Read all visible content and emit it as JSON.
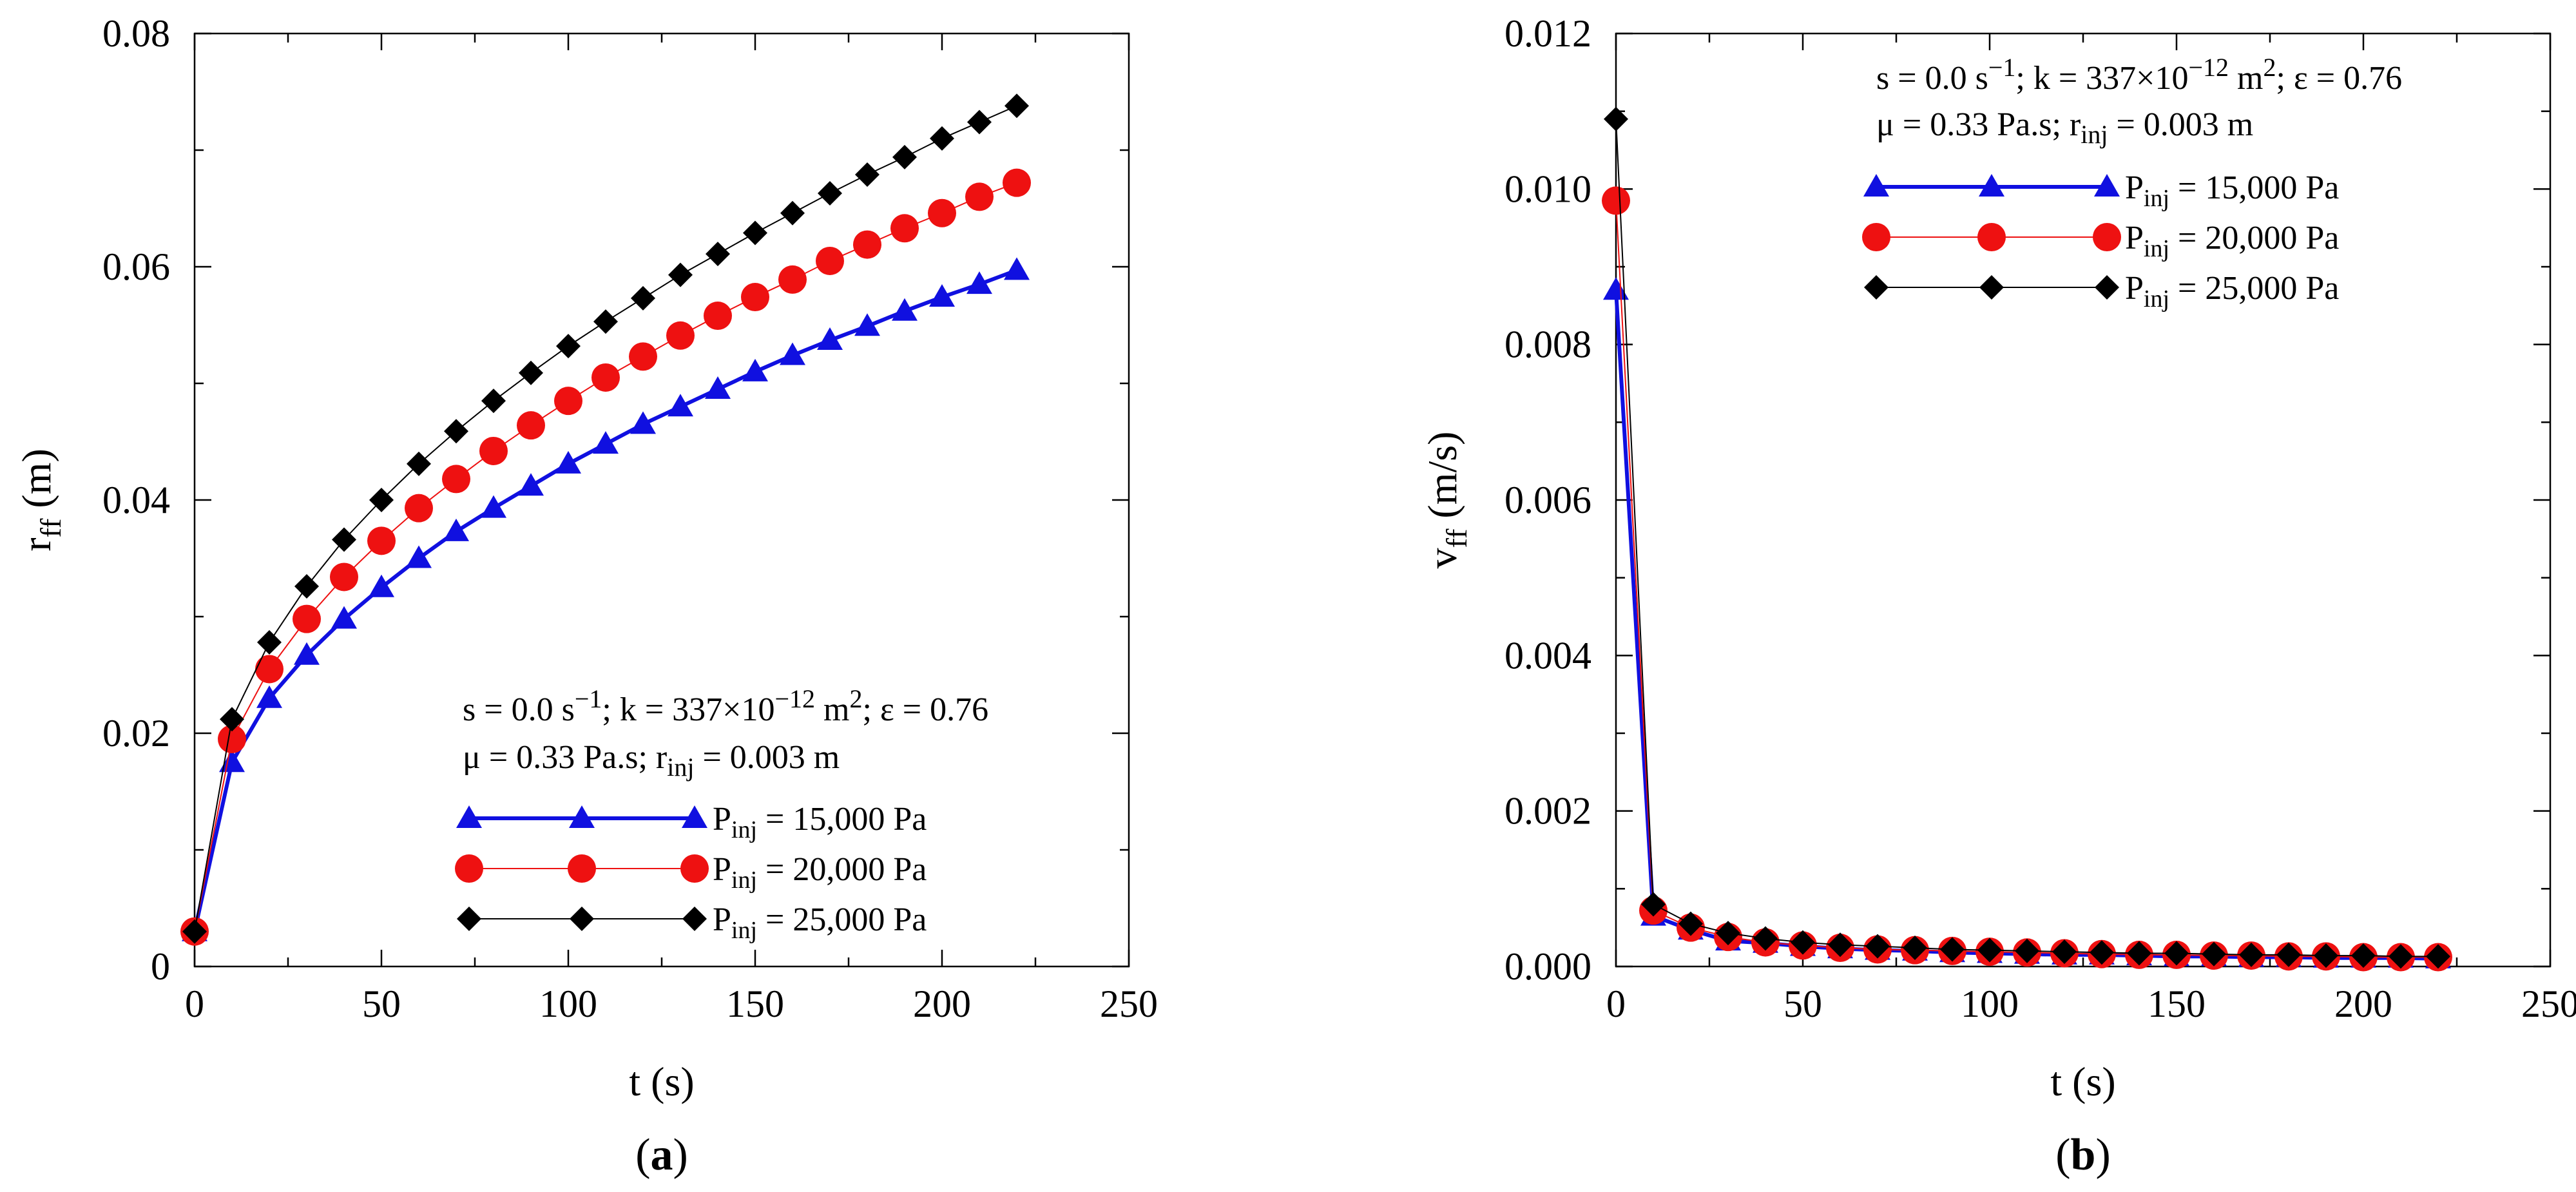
{
  "chart_data": [
    {
      "type": "line",
      "panel_label": "a",
      "xlabel": "t (s)",
      "ylabel": {
        "main": "r",
        "sub": "ff",
        "unit": "(m)"
      },
      "xlim": [
        0,
        250
      ],
      "ylim": [
        0,
        0.08
      ],
      "xticks": [
        0,
        50,
        100,
        150,
        200,
        250
      ],
      "yticks": [
        0,
        0.02,
        0.04,
        0.06,
        0.08
      ],
      "ytick_labels": [
        "0",
        "0.02",
        "0.04",
        "0.06",
        "0.08"
      ],
      "xtick_labels": [
        "0",
        "50",
        "100",
        "150",
        "200",
        "250"
      ],
      "grid": false,
      "legend_position": "bottom-right",
      "annotation_lines": [
        {
          "parts": [
            {
              "t": "s = 0.0 s"
            },
            {
              "t": "−1",
              "sup": true
            },
            {
              "t": "; k = 337×10"
            },
            {
              "t": "−12",
              "sup": true
            },
            {
              "t": " m"
            },
            {
              "t": "2",
              "sup": true
            },
            {
              "t": "; ε = 0.76"
            }
          ]
        },
        {
          "parts": [
            {
              "t": "μ = 0.33 Pa.s; r"
            },
            {
              "t": "inj",
              "sub": true
            },
            {
              "t": " = 0.003 m"
            }
          ]
        }
      ],
      "x": [
        0,
        10,
        20,
        30,
        40,
        50,
        60,
        70,
        80,
        90,
        100,
        110,
        120,
        130,
        140,
        150,
        160,
        170,
        180,
        190,
        200,
        210,
        220
      ],
      "series": [
        {
          "name": "P_inj = 15,000 Pa",
          "label_main": "P",
          "label_sub": "inj",
          "label_rest": " = 15,000 Pa",
          "color": "#1010e0",
          "marker": "triangle",
          "line_width": 6,
          "values": [
            0.003,
            0.0175,
            0.023,
            0.0267,
            0.0298,
            0.0325,
            0.035,
            0.0373,
            0.0393,
            0.0412,
            0.0431,
            0.0448,
            0.0465,
            0.048,
            0.0495,
            0.051,
            0.0524,
            0.0537,
            0.0549,
            0.0562,
            0.0574,
            0.0585,
            0.0597
          ]
        },
        {
          "name": "P_inj = 20,000 Pa",
          "label_main": "P",
          "label_sub": "inj",
          "label_rest": " = 20,000 Pa",
          "color": "#ee1111",
          "marker": "circle",
          "line_width": 2,
          "values": [
            0.003,
            0.0195,
            0.0255,
            0.0298,
            0.0334,
            0.0365,
            0.0393,
            0.0418,
            0.0442,
            0.0464,
            0.0485,
            0.0505,
            0.0523,
            0.0541,
            0.0558,
            0.0574,
            0.0589,
            0.0605,
            0.0619,
            0.0633,
            0.0646,
            0.066,
            0.0672
          ]
        },
        {
          "name": "P_inj = 25,000 Pa",
          "label_main": "P",
          "label_sub": "inj",
          "label_rest": " = 25,000 Pa",
          "color": "#000000",
          "marker": "diamond",
          "line_width": 2,
          "values": [
            0.003,
            0.0212,
            0.0278,
            0.0326,
            0.0366,
            0.04,
            0.0431,
            0.0459,
            0.0485,
            0.0509,
            0.0532,
            0.0553,
            0.0573,
            0.0593,
            0.0611,
            0.0629,
            0.0646,
            0.0663,
            0.0679,
            0.0694,
            0.071,
            0.0724,
            0.0738
          ]
        }
      ]
    },
    {
      "type": "line",
      "panel_label": "b",
      "xlabel": "t (s)",
      "ylabel": {
        "main": "v",
        "sub": "ff",
        "unit": "(m/s)"
      },
      "xlim": [
        0,
        250
      ],
      "ylim": [
        0,
        0.012
      ],
      "xticks": [
        0,
        50,
        100,
        150,
        200,
        250
      ],
      "yticks": [
        0,
        0.002,
        0.004,
        0.006,
        0.008,
        0.01,
        0.012
      ],
      "ytick_labels": [
        "0.000",
        "0.002",
        "0.004",
        "0.006",
        "0.008",
        "0.010",
        "0.012"
      ],
      "xtick_labels": [
        "0",
        "50",
        "100",
        "150",
        "200",
        "250"
      ],
      "grid": false,
      "legend_position": "top-right",
      "annotation_lines": [
        {
          "parts": [
            {
              "t": "s = 0.0 s"
            },
            {
              "t": "−1",
              "sup": true
            },
            {
              "t": "; k = 337×10"
            },
            {
              "t": "−12",
              "sup": true
            },
            {
              "t": " m"
            },
            {
              "t": "2",
              "sup": true
            },
            {
              "t": "; ε = 0.76"
            }
          ]
        },
        {
          "parts": [
            {
              "t": "μ = 0.33 Pa.s; r"
            },
            {
              "t": "inj",
              "sub": true
            },
            {
              "t": " = 0.003 m"
            }
          ]
        }
      ],
      "x": [
        0,
        10,
        20,
        30,
        40,
        50,
        60,
        70,
        80,
        90,
        100,
        110,
        120,
        130,
        140,
        150,
        160,
        170,
        180,
        190,
        200,
        210,
        220
      ],
      "series": [
        {
          "name": "P_inj = 15,000 Pa",
          "label_main": "P",
          "label_sub": "inj",
          "label_rest": " = 15,000 Pa",
          "color": "#1010e0",
          "marker": "triangle",
          "line_width": 6,
          "values": [
            0.0087,
            0.00065,
            0.00047,
            0.00033,
            0.0003,
            0.00026,
            0.00023,
            0.00021,
            0.0002,
            0.00018,
            0.00017,
            0.00016,
            0.00015,
            0.00015,
            0.00014,
            0.00013,
            0.00013,
            0.00012,
            0.00012,
            0.00011,
            0.00011,
            0.00011,
            0.0001
          ]
        },
        {
          "name": "P_inj = 20,000 Pa",
          "label_main": "P",
          "label_sub": "inj",
          "label_rest": " = 20,000 Pa",
          "color": "#ee1111",
          "marker": "circle",
          "line_width": 2,
          "values": [
            0.00985,
            0.00072,
            0.0005,
            0.00038,
            0.00031,
            0.00027,
            0.00024,
            0.00022,
            0.00021,
            0.0002,
            0.00019,
            0.00018,
            0.00017,
            0.00016,
            0.00015,
            0.00015,
            0.00014,
            0.00014,
            0.00013,
            0.00013,
            0.00012,
            0.00012,
            0.00012
          ]
        },
        {
          "name": "P_inj = 25,000 Pa",
          "label_main": "P",
          "label_sub": "inj",
          "label_rest": " = 25,000 Pa",
          "color": "#000000",
          "marker": "diamond",
          "line_width": 2,
          "values": [
            0.0109,
            0.0008,
            0.00055,
            0.00043,
            0.00036,
            0.00031,
            0.00028,
            0.00026,
            0.00024,
            0.00022,
            0.00021,
            0.0002,
            0.00019,
            0.00018,
            0.00017,
            0.00017,
            0.00016,
            0.00015,
            0.00015,
            0.00014,
            0.00014,
            0.00013,
            0.00013
          ]
        }
      ]
    }
  ]
}
